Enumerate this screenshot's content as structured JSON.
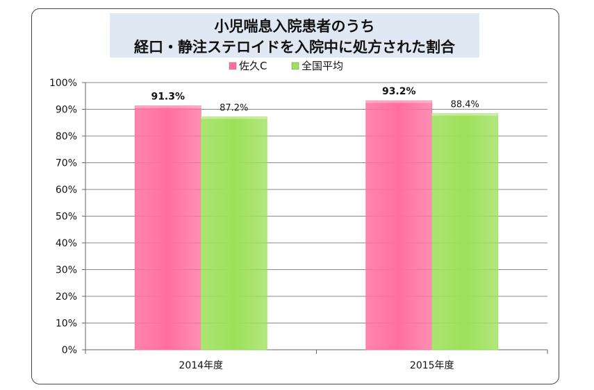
{
  "chart_data": {
    "type": "bar",
    "title_lines": [
      "小児喘息入院患者のうち",
      "経口・静注ステロイドを入院中に処方された割合"
    ],
    "categories": [
      "2014年度",
      "2015年度"
    ],
    "series": [
      {
        "name": "佐久C",
        "values": [
          91.3,
          93.2
        ],
        "labels": [
          "91.3%",
          "93.2%"
        ],
        "color": "#ff6fa0",
        "label_style": "bold"
      },
      {
        "name": "全国平均",
        "values": [
          87.2,
          88.4
        ],
        "labels": [
          "87.2%",
          "88.4%"
        ],
        "color": "#9de05a",
        "label_style": "normal"
      }
    ],
    "ylim": [
      0,
      100
    ],
    "yticks": [
      0,
      10,
      20,
      30,
      40,
      50,
      60,
      70,
      80,
      90,
      100
    ],
    "ytick_labels": [
      "0%",
      "10%",
      "20%",
      "30%",
      "40%",
      "50%",
      "60%",
      "70%",
      "80%",
      "90%",
      "100%"
    ],
    "grid": true,
    "legend_position": "top-center"
  }
}
